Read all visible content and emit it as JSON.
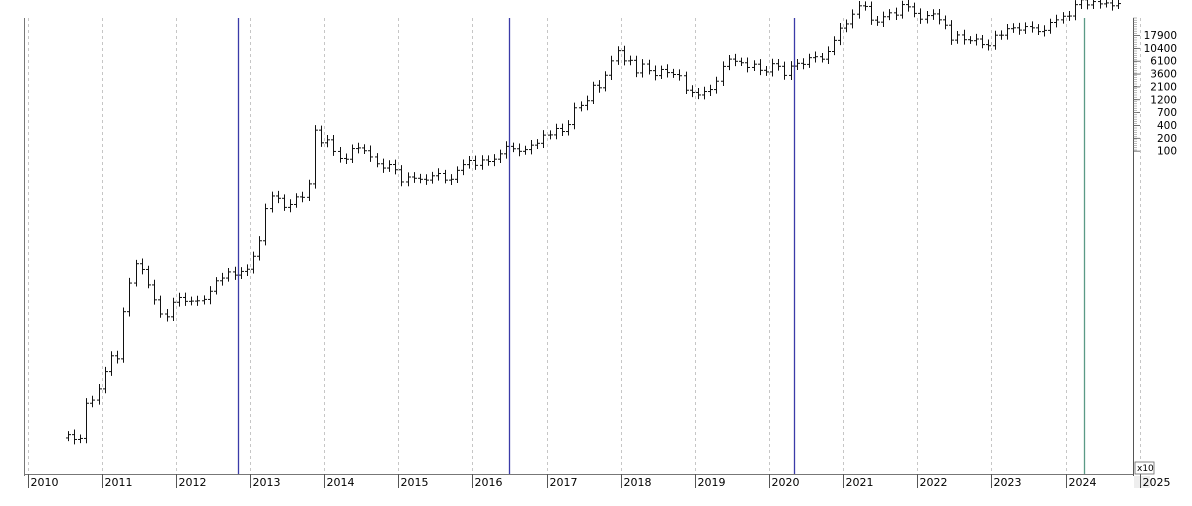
{
  "chart_data": {
    "type": "ohlc",
    "y_scale": "log",
    "x_ticks": [
      "2010",
      "2011",
      "2012",
      "2013",
      "2014",
      "2015",
      "2016",
      "2017",
      "2018",
      "2019",
      "2020",
      "2021",
      "2022",
      "2023",
      "2024",
      "2025"
    ],
    "y_tick_labels": [
      "17900",
      "10400",
      "6100",
      "3600",
      "2100",
      "1200",
      "700",
      "400",
      "200",
      "100"
    ],
    "scale_note": "x10",
    "grid": "vertical dashed at each year",
    "vertical_markers": [
      {
        "date": "2012-11",
        "color": "#3b3ba8"
      },
      {
        "date": "2016-07",
        "color": "#3b3ba8"
      },
      {
        "date": "2020-05",
        "color": "#3b3ba8"
      },
      {
        "date": "2024-04",
        "color": "#5a9a86"
      }
    ],
    "monthly_close": [
      [
        "2010-07",
        0.07
      ],
      [
        "2010-08",
        0.06
      ],
      [
        "2010-09",
        0.062
      ],
      [
        "2010-10",
        0.19
      ],
      [
        "2010-11",
        0.21
      ],
      [
        "2010-12",
        0.3
      ],
      [
        "2011-01",
        0.52
      ],
      [
        "2011-02",
        0.86
      ],
      [
        "2011-03",
        0.78
      ],
      [
        "2011-04",
        3.5
      ],
      [
        "2011-05",
        8.7
      ],
      [
        "2011-06",
        16.1
      ],
      [
        "2011-07",
        13.4
      ],
      [
        "2011-08",
        8.2
      ],
      [
        "2011-09",
        5.1
      ],
      [
        "2011-10",
        3.25
      ],
      [
        "2011-11",
        2.97
      ],
      [
        "2011-12",
        4.72
      ],
      [
        "2012-01",
        5.5
      ],
      [
        "2012-02",
        4.86
      ],
      [
        "2012-03",
        4.9
      ],
      [
        "2012-04",
        4.95
      ],
      [
        "2012-05",
        5.17
      ],
      [
        "2012-06",
        6.7
      ],
      [
        "2012-07",
        9.35
      ],
      [
        "2012-08",
        10.2
      ],
      [
        "2012-09",
        12.4
      ],
      [
        "2012-10",
        11.2
      ],
      [
        "2012-11",
        12.6
      ],
      [
        "2012-12",
        13.5
      ],
      [
        "2013-01",
        20.4
      ],
      [
        "2013-02",
        33.4
      ],
      [
        "2013-03",
        93.0
      ],
      [
        "2013-04",
        139
      ],
      [
        "2013-05",
        129
      ],
      [
        "2013-06",
        96.6
      ],
      [
        "2013-07",
        106
      ],
      [
        "2013-08",
        135
      ],
      [
        "2013-09",
        133
      ],
      [
        "2013-10",
        204
      ],
      [
        "2013-11",
        1128
      ],
      [
        "2013-12",
        754
      ],
      [
        "2014-01",
        829
      ],
      [
        "2014-02",
        573
      ],
      [
        "2014-03",
        458
      ],
      [
        "2014-04",
        447
      ],
      [
        "2014-05",
        628
      ],
      [
        "2014-06",
        641
      ],
      [
        "2014-07",
        586
      ],
      [
        "2014-08",
        481
      ],
      [
        "2014-09",
        387
      ],
      [
        "2014-10",
        338
      ],
      [
        "2014-11",
        378
      ],
      [
        "2014-12",
        320
      ],
      [
        "2015-01",
        217
      ],
      [
        "2015-02",
        254
      ],
      [
        "2015-03",
        244
      ],
      [
        "2015-04",
        236
      ],
      [
        "2015-05",
        230
      ],
      [
        "2015-06",
        264
      ],
      [
        "2015-07",
        284
      ],
      [
        "2015-08",
        230
      ],
      [
        "2015-09",
        236
      ],
      [
        "2015-10",
        314
      ],
      [
        "2015-11",
        377
      ],
      [
        "2015-12",
        430
      ],
      [
        "2016-01",
        368
      ],
      [
        "2016-02",
        437
      ],
      [
        "2016-03",
        416
      ],
      [
        "2016-04",
        448
      ],
      [
        "2016-05",
        531
      ],
      [
        "2016-06",
        673
      ],
      [
        "2016-07",
        624
      ],
      [
        "2016-08",
        575
      ],
      [
        "2016-09",
        608
      ],
      [
        "2016-10",
        700
      ],
      [
        "2016-11",
        742
      ],
      [
        "2016-12",
        963
      ],
      [
        "2017-01",
        970
      ],
      [
        "2017-02",
        1190
      ],
      [
        "2017-03",
        1080
      ],
      [
        "2017-04",
        1348
      ],
      [
        "2017-05",
        2300
      ],
      [
        "2017-06",
        2480
      ],
      [
        "2017-07",
        2875
      ],
      [
        "2017-08",
        4703
      ],
      [
        "2017-09",
        4338
      ],
      [
        "2017-10",
        6468
      ],
      [
        "2017-11",
        10233
      ],
      [
        "2017-12",
        14156
      ],
      [
        "2018-01",
        10221
      ],
      [
        "2018-02",
        10397
      ],
      [
        "2018-03",
        6973
      ],
      [
        "2018-04",
        9240
      ],
      [
        "2018-05",
        7494
      ],
      [
        "2018-06",
        6404
      ],
      [
        "2018-07",
        7780
      ],
      [
        "2018-08",
        7037
      ],
      [
        "2018-09",
        6625
      ],
      [
        "2018-10",
        6371
      ],
      [
        "2018-11",
        4017
      ],
      [
        "2018-12",
        3743
      ],
      [
        "2019-01",
        3457
      ],
      [
        "2019-02",
        3854
      ],
      [
        "2019-03",
        4105
      ],
      [
        "2019-04",
        5350
      ],
      [
        "2019-05",
        8574
      ],
      [
        "2019-06",
        10817
      ],
      [
        "2019-07",
        10085
      ],
      [
        "2019-08",
        9630
      ],
      [
        "2019-09",
        8293
      ],
      [
        "2019-10",
        9199
      ],
      [
        "2019-11",
        7569
      ],
      [
        "2019-12",
        7193
      ],
      [
        "2020-01",
        9350
      ],
      [
        "2020-02",
        8599
      ],
      [
        "2020-03",
        6438
      ],
      [
        "2020-04",
        8658
      ],
      [
        "2020-05",
        9461
      ],
      [
        "2020-06",
        9137
      ],
      [
        "2020-07",
        11323
      ],
      [
        "2020-08",
        11680
      ],
      [
        "2020-09",
        10784
      ],
      [
        "2020-10",
        13781
      ],
      [
        "2020-11",
        19625
      ],
      [
        "2020-12",
        29001
      ],
      [
        "2021-01",
        33114
      ],
      [
        "2021-02",
        45137
      ],
      [
        "2021-03",
        58918
      ],
      [
        "2021-04",
        57750
      ],
      [
        "2021-05",
        37332
      ],
      [
        "2021-06",
        35040
      ],
      [
        "2021-07",
        41626
      ],
      [
        "2021-08",
        47166
      ],
      [
        "2021-09",
        43791
      ],
      [
        "2021-10",
        61318
      ],
      [
        "2021-11",
        57005
      ],
      [
        "2021-12",
        46306
      ],
      [
        "2022-01",
        38483
      ],
      [
        "2022-02",
        43193
      ],
      [
        "2022-03",
        45538
      ],
      [
        "2022-04",
        37714
      ],
      [
        "2022-05",
        31792
      ],
      [
        "2022-06",
        19785
      ],
      [
        "2022-07",
        23336
      ],
      [
        "2022-08",
        20050
      ],
      [
        "2022-09",
        19432
      ],
      [
        "2022-10",
        20495
      ],
      [
        "2022-11",
        17168
      ],
      [
        "2022-12",
        16548
      ],
      [
        "2023-01",
        23139
      ],
      [
        "2023-02",
        23147
      ],
      [
        "2023-03",
        28478
      ],
      [
        "2023-04",
        29268
      ],
      [
        "2023-05",
        27219
      ],
      [
        "2023-06",
        30477
      ],
      [
        "2023-07",
        29230
      ],
      [
        "2023-08",
        25931
      ],
      [
        "2023-09",
        26968
      ],
      [
        "2023-10",
        34667
      ],
      [
        "2023-11",
        37713
      ],
      [
        "2023-12",
        42265
      ],
      [
        "2024-01",
        42582
      ],
      [
        "2024-02",
        61198
      ],
      [
        "2024-03",
        71333
      ],
      [
        "2024-04",
        60636
      ],
      [
        "2024-05",
        67491
      ],
      [
        "2024-06",
        62678
      ],
      [
        "2024-07",
        64620
      ],
      [
        "2024-08",
        58970
      ],
      [
        "2024-09",
        63330
      ]
    ]
  }
}
